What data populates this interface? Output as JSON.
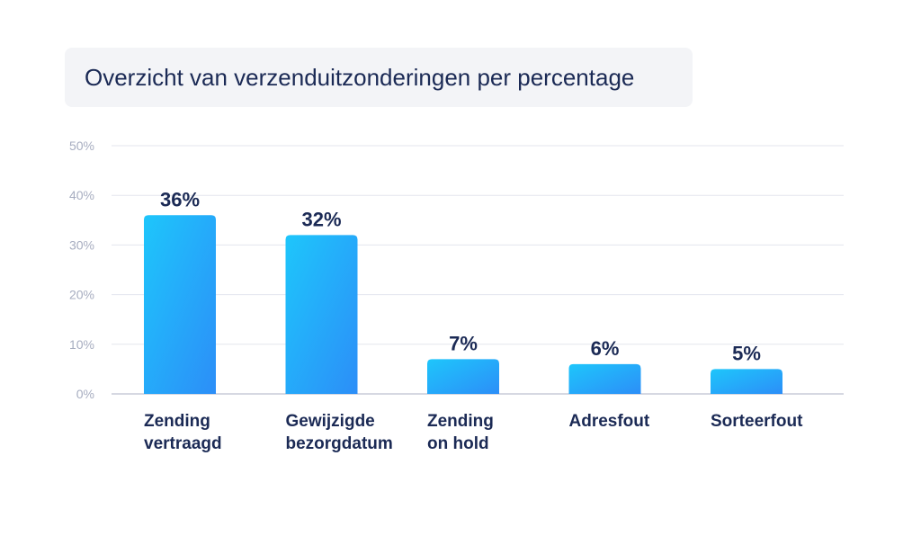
{
  "chart_data": {
    "type": "bar",
    "title": "Overzicht van verzenduitzonderingen per percentage",
    "categories": [
      [
        "Zending",
        "vertraagd"
      ],
      [
        "Gewijzigde",
        "bezorgdatum"
      ],
      [
        "Zending",
        "on hold"
      ],
      [
        "Adresfout"
      ],
      [
        "Sorteerfout"
      ]
    ],
    "values": [
      36,
      32,
      7,
      6,
      5
    ],
    "value_labels": [
      "36%",
      "32%",
      "7%",
      "6%",
      "5%"
    ],
    "yticks": [
      0,
      10,
      20,
      30,
      40,
      50
    ],
    "ytick_labels": [
      "0%",
      "10%",
      "20%",
      "30%",
      "40%",
      "50%"
    ],
    "ylim": [
      0,
      50
    ],
    "grid": true,
    "bar_gradient": [
      "#1ec6fb",
      "#2c8ef8"
    ]
  }
}
